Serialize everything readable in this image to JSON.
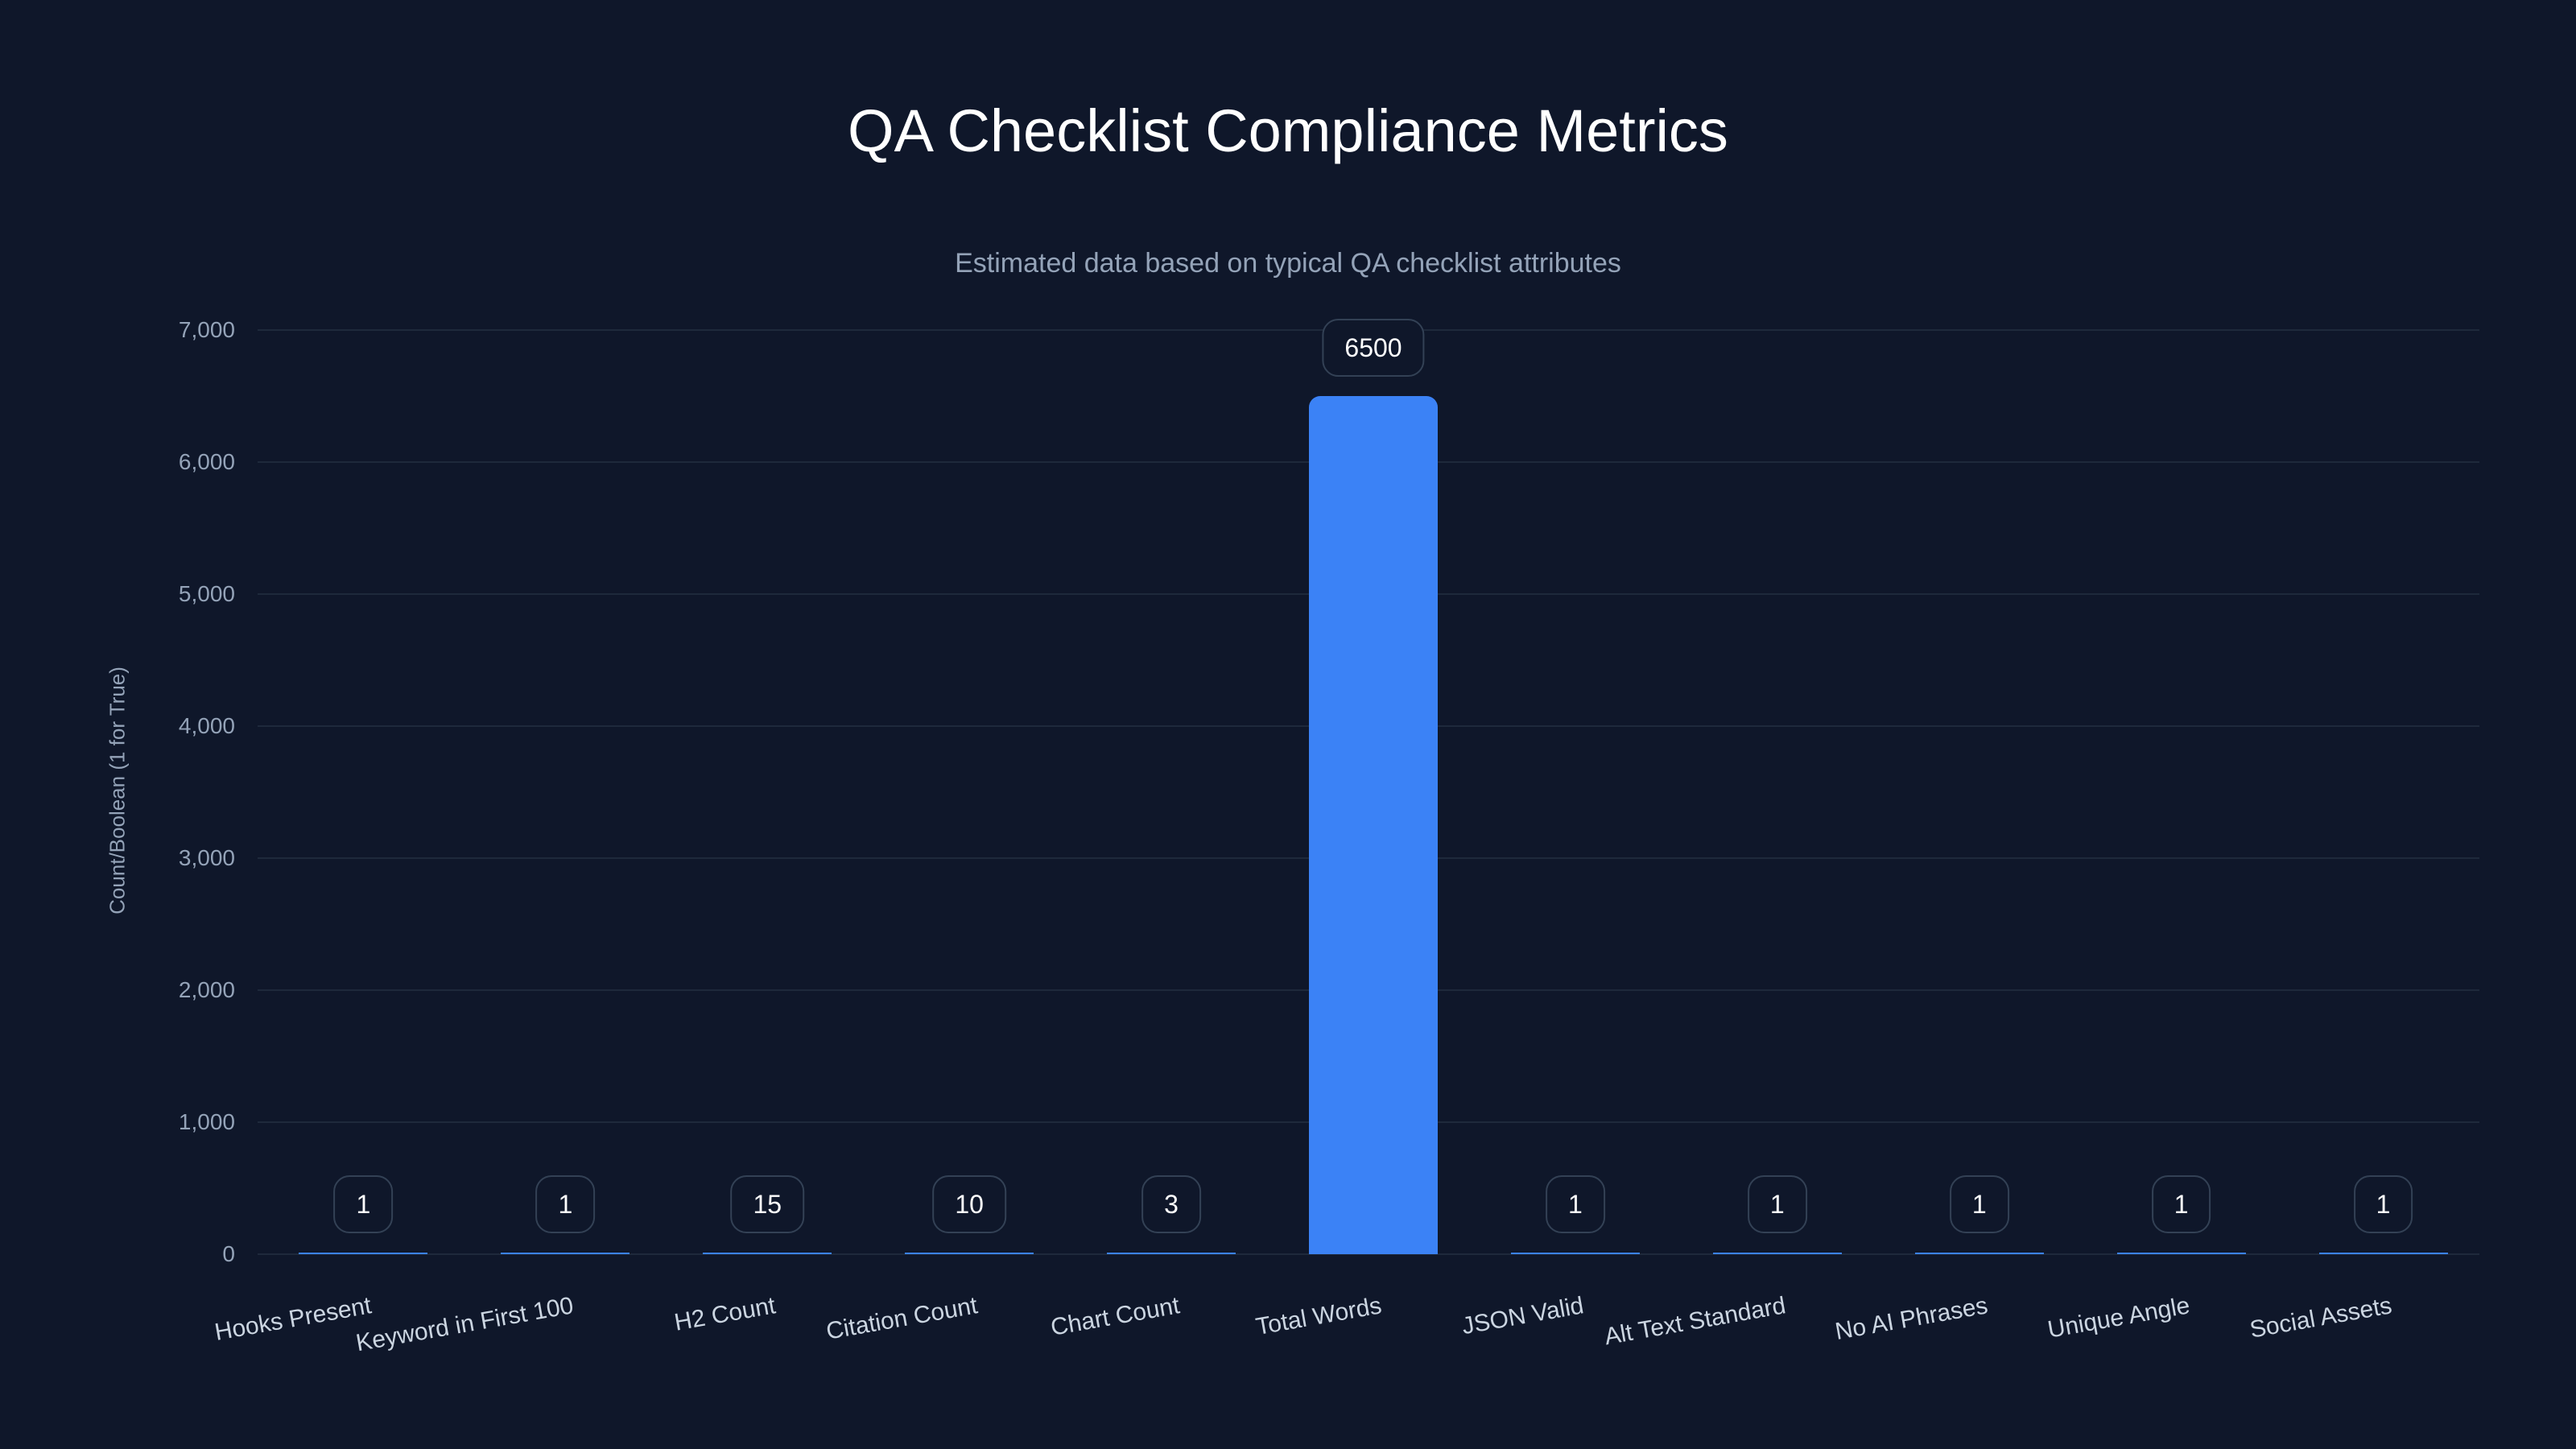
{
  "header": {
    "title": "QA Checklist Compliance Metrics",
    "subtitle": "Estimated data based on typical QA checklist attributes"
  },
  "colors": {
    "background": "#0f172a",
    "bar": "#3b82f6",
    "grid": "#1e293b",
    "label_border": "#334155",
    "axis_text": "#94a3b8"
  },
  "chart_data": {
    "type": "bar",
    "title": "QA Checklist Compliance Metrics",
    "subtitle": "Estimated data based on typical QA checklist attributes",
    "xlabel": "",
    "ylabel": "Count/Boolean (1 for True)",
    "ylim": [
      0,
      7000
    ],
    "yticks": [
      0,
      1000,
      2000,
      3000,
      4000,
      5000,
      6000,
      7000
    ],
    "ytick_labels": [
      "0",
      "1,000",
      "2,000",
      "3,000",
      "4,000",
      "5,000",
      "6,000",
      "7,000"
    ],
    "grid": true,
    "legend": null,
    "categories": [
      "Hooks Present",
      "Keyword in First 100",
      "H2 Count",
      "Citation Count",
      "Chart Count",
      "Total Words",
      "JSON Valid",
      "Alt Text Standard",
      "No AI Phrases",
      "Unique Angle",
      "Social Assets"
    ],
    "values": [
      1,
      1,
      15,
      10,
      3,
      6500,
      1,
      1,
      1,
      1,
      1
    ],
    "data_labels": [
      "1",
      "1",
      "15",
      "10",
      "3",
      "6500",
      "1",
      "1",
      "1",
      "1",
      "1"
    ]
  }
}
